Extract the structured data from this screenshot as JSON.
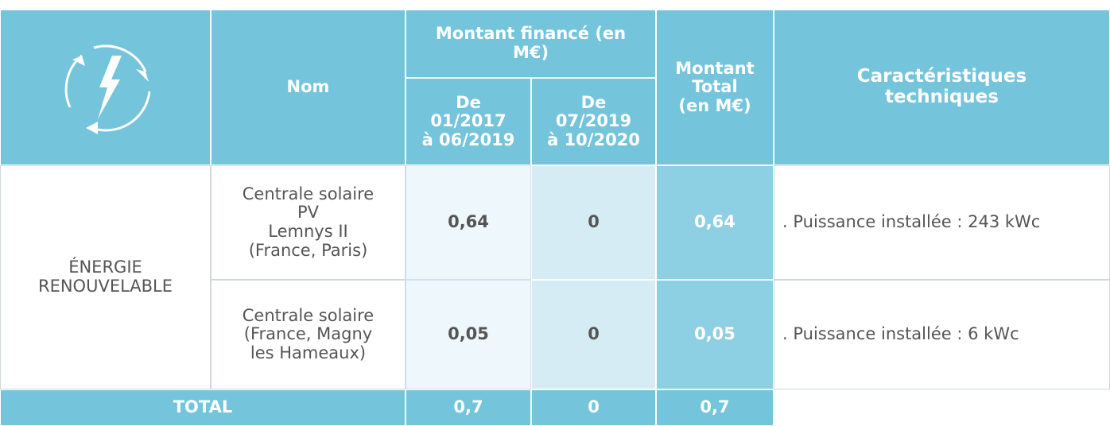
{
  "header": {
    "name": "Nom",
    "financed": "Montant financé (en M€)",
    "period1": "De\n01/2017\nà 06/2019",
    "period2": "De\n07/2019\nà 10/2020",
    "total": "Montant\nTotal\n(en M€)",
    "tech": "Caractéristiques\ntechniques"
  },
  "table": {
    "category": "ÉNERGIE\nRENOUVELABLE",
    "rows": [
      [
        "Centrale solaire\nPV\nLemnys II\n(France, Paris)",
        "0,64",
        "0",
        "0,64",
        ". Puissance installée : 243 kWc"
      ],
      [
        "Centrale solaire\n(France, Magny\nles Hameaux)",
        "0,05",
        "0",
        "0,05",
        ". Puissance installée : 6 kWc"
      ]
    ]
  },
  "footer": {
    "label": "TOTAL",
    "values": [
      "0,7",
      "0",
      "0,7"
    ]
  }
}
